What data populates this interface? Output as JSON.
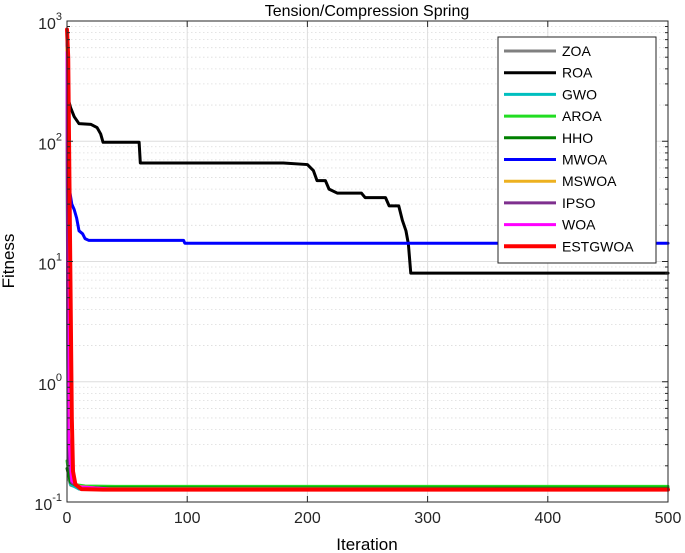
{
  "chart_data": {
    "type": "line",
    "title": "Tension/Compression Spring",
    "xlabel": "Iteration",
    "ylabel": "Fitness",
    "xlim": [
      0,
      500
    ],
    "ylim": [
      0.1,
      1000
    ],
    "yscale": "log",
    "grid": true,
    "legend_position": "top-right",
    "xticks": [
      0,
      100,
      200,
      300,
      400,
      500
    ],
    "xtick_labels": [
      "0",
      "100",
      "200",
      "300",
      "400",
      "500"
    ],
    "yticks": [
      0.1,
      1,
      10,
      100,
      1000
    ],
    "ytick_labels": [
      {
        "base": "10",
        "exp": "-1"
      },
      {
        "base": "10",
        "exp": "0"
      },
      {
        "base": "10",
        "exp": "1"
      },
      {
        "base": "10",
        "exp": "2"
      },
      {
        "base": "10",
        "exp": "3"
      }
    ],
    "series": [
      {
        "name": "ZOA",
        "color": "#808080",
        "points": [
          [
            0,
            300
          ],
          [
            1,
            0.16
          ],
          [
            3,
            0.138
          ],
          [
            10,
            0.131
          ],
          [
            30,
            0.1275
          ],
          [
            100,
            0.1271
          ],
          [
            500,
            0.127
          ]
        ]
      },
      {
        "name": "ROA",
        "color": "#000000",
        "points": [
          [
            0,
            400
          ],
          [
            1,
            225
          ],
          [
            3,
            190
          ],
          [
            6,
            160
          ],
          [
            10,
            140
          ],
          [
            20,
            138
          ],
          [
            25,
            130
          ],
          [
            28,
            115
          ],
          [
            30,
            98
          ],
          [
            60,
            98
          ],
          [
            61,
            66
          ],
          [
            180,
            66
          ],
          [
            200,
            64
          ],
          [
            205,
            57
          ],
          [
            208,
            47
          ],
          [
            215,
            47
          ],
          [
            218,
            40
          ],
          [
            225,
            37
          ],
          [
            245,
            37
          ],
          [
            248,
            34
          ],
          [
            265,
            34
          ],
          [
            268,
            29
          ],
          [
            276,
            29
          ],
          [
            279,
            22
          ],
          [
            282,
            18
          ],
          [
            284,
            14
          ],
          [
            286,
            8.0
          ],
          [
            500,
            8.0
          ]
        ]
      },
      {
        "name": "GWO",
        "color": "#00bfbf",
        "points": [
          [
            0,
            250
          ],
          [
            1,
            0.2
          ],
          [
            3,
            0.14
          ],
          [
            10,
            0.128
          ],
          [
            30,
            0.1268
          ],
          [
            500,
            0.1267
          ]
        ]
      },
      {
        "name": "AROA",
        "color": "#22dd22",
        "points": [
          [
            0,
            0.22
          ],
          [
            2,
            0.16
          ],
          [
            6,
            0.14
          ],
          [
            15,
            0.136
          ],
          [
            40,
            0.135
          ],
          [
            500,
            0.135
          ]
        ]
      },
      {
        "name": "HHO",
        "color": "#008000",
        "points": [
          [
            0,
            0.19
          ],
          [
            3,
            0.145
          ],
          [
            10,
            0.133
          ],
          [
            30,
            0.131
          ],
          [
            500,
            0.1305
          ]
        ]
      },
      {
        "name": "MWOA",
        "color": "#0000ff",
        "points": [
          [
            0,
            800
          ],
          [
            1,
            60
          ],
          [
            2,
            40
          ],
          [
            4,
            30
          ],
          [
            6,
            27
          ],
          [
            8,
            23
          ],
          [
            10,
            18
          ],
          [
            13,
            17
          ],
          [
            15,
            15.5
          ],
          [
            18,
            15
          ],
          [
            97,
            15
          ],
          [
            98,
            14.2
          ],
          [
            500,
            14.2
          ]
        ]
      },
      {
        "name": "MSWOA",
        "color": "#edb120",
        "points": [
          [
            0,
            600
          ],
          [
            1,
            0.3
          ],
          [
            4,
            0.15
          ],
          [
            10,
            0.135
          ],
          [
            30,
            0.129
          ],
          [
            500,
            0.128
          ]
        ]
      },
      {
        "name": "IPSO",
        "color": "#7e2f8e",
        "points": [
          [
            0,
            500
          ],
          [
            1,
            0.25
          ],
          [
            4,
            0.145
          ],
          [
            10,
            0.133
          ],
          [
            30,
            0.128
          ],
          [
            500,
            0.1275
          ]
        ]
      },
      {
        "name": "WOA",
        "color": "#ff00ff",
        "points": [
          [
            0,
            550
          ],
          [
            1,
            0.4
          ],
          [
            4,
            0.15
          ],
          [
            10,
            0.134
          ],
          [
            40,
            0.1275
          ],
          [
            500,
            0.127
          ]
        ]
      },
      {
        "name": "ESTGWOA",
        "color": "#ff0000",
        "points": [
          [
            0,
            850
          ],
          [
            1,
            500
          ],
          [
            2,
            50
          ],
          [
            3,
            5
          ],
          [
            4,
            0.5
          ],
          [
            5,
            0.18
          ],
          [
            7,
            0.14
          ],
          [
            12,
            0.128
          ],
          [
            30,
            0.1268
          ],
          [
            500,
            0.1267
          ]
        ]
      }
    ]
  }
}
